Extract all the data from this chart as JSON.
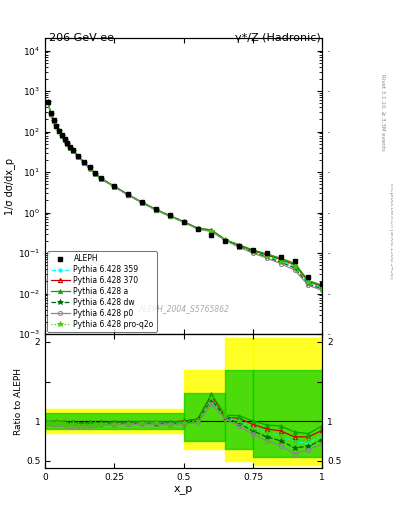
{
  "title_left": "206 GeV ee",
  "title_right": "γ*/Z (Hadronic)",
  "ylabel_main": "1/σ dσ/dx_p",
  "ylabel_ratio": "Ratio to ALEPH",
  "xlabel": "x_p",
  "watermark": "ALEPH_2004_S5765862",
  "right_label": "Rivet 3.1.10, ≥ 3.3M events",
  "right_label2": "mcplots.cern.ch [arXiv:1306.3436]",
  "xp": [
    0.01,
    0.02,
    0.03,
    0.04,
    0.05,
    0.06,
    0.07,
    0.08,
    0.09,
    0.1,
    0.12,
    0.14,
    0.16,
    0.18,
    0.2,
    0.25,
    0.3,
    0.35,
    0.4,
    0.45,
    0.5,
    0.55,
    0.6,
    0.65,
    0.7,
    0.75,
    0.8,
    0.85,
    0.9,
    0.95,
    1.0
  ],
  "aleph_y": [
    550,
    280,
    190,
    140,
    105,
    82,
    65,
    52,
    42,
    35,
    25,
    18,
    13,
    9.5,
    7.2,
    4.5,
    2.8,
    1.8,
    1.2,
    0.85,
    0.6,
    0.4,
    0.28,
    0.2,
    0.15,
    0.12,
    0.1,
    0.08,
    0.065,
    0.025,
    0.017
  ],
  "py359_y": [
    540,
    275,
    185,
    138,
    103,
    80,
    63,
    50,
    40,
    34,
    24,
    17,
    12.5,
    9.2,
    7.0,
    4.4,
    2.75,
    1.78,
    1.18,
    0.83,
    0.59,
    0.4,
    0.36,
    0.21,
    0.15,
    0.11,
    0.085,
    0.065,
    0.048,
    0.018,
    0.014
  ],
  "py370_y": [
    542,
    277,
    186,
    139,
    104,
    81,
    64,
    51,
    41,
    34.5,
    24.5,
    17.5,
    12.8,
    9.3,
    7.1,
    4.45,
    2.76,
    1.79,
    1.19,
    0.84,
    0.6,
    0.41,
    0.37,
    0.21,
    0.155,
    0.115,
    0.09,
    0.07,
    0.052,
    0.02,
    0.015
  ],
  "pya_y": [
    545,
    278,
    188,
    140,
    104,
    81,
    64,
    51,
    41,
    34.5,
    24.5,
    17.5,
    12.8,
    9.3,
    7.05,
    4.45,
    2.76,
    1.79,
    1.19,
    0.84,
    0.595,
    0.41,
    0.375,
    0.215,
    0.16,
    0.12,
    0.095,
    0.075,
    0.056,
    0.021,
    0.016
  ],
  "pydw_y": [
    538,
    273,
    184,
    137,
    102,
    79.5,
    62.5,
    49.5,
    40,
    33.5,
    23.8,
    17.0,
    12.4,
    9.1,
    6.9,
    4.35,
    2.7,
    1.75,
    1.16,
    0.82,
    0.585,
    0.4,
    0.355,
    0.21,
    0.145,
    0.105,
    0.08,
    0.06,
    0.043,
    0.017,
    0.013
  ],
  "pyp0_y": [
    535,
    271,
    182,
    136,
    101,
    79,
    62,
    49,
    39.5,
    33,
    23.5,
    16.8,
    12.2,
    9.0,
    6.8,
    4.3,
    2.68,
    1.73,
    1.15,
    0.81,
    0.58,
    0.39,
    0.34,
    0.205,
    0.14,
    0.1,
    0.075,
    0.055,
    0.038,
    0.016,
    0.012
  ],
  "pyq2o_y": [
    537,
    273,
    183,
    137,
    102,
    79.5,
    62.5,
    49.5,
    40,
    33.5,
    23.8,
    17.0,
    12.4,
    9.1,
    6.9,
    4.35,
    2.71,
    1.76,
    1.165,
    0.82,
    0.585,
    0.4,
    0.36,
    0.215,
    0.15,
    0.11,
    0.085,
    0.065,
    0.048,
    0.019,
    0.014
  ],
  "ratio_xp": [
    0.01,
    0.02,
    0.03,
    0.04,
    0.05,
    0.06,
    0.07,
    0.08,
    0.09,
    0.1,
    0.12,
    0.14,
    0.16,
    0.18,
    0.2,
    0.25,
    0.3,
    0.35,
    0.4,
    0.45,
    0.5,
    0.55,
    0.6,
    0.65,
    0.7,
    0.75,
    0.8,
    0.85,
    0.9,
    0.95,
    1.0
  ],
  "ratio_py359": [
    0.982,
    0.982,
    0.974,
    0.986,
    0.981,
    0.976,
    0.969,
    0.962,
    0.952,
    0.971,
    0.96,
    0.944,
    0.962,
    0.968,
    0.972,
    0.978,
    0.982,
    0.989,
    0.983,
    0.976,
    0.983,
    1.0,
    1.286,
    1.05,
    1.0,
    0.917,
    0.85,
    0.813,
    0.738,
    0.72,
    0.824
  ],
  "ratio_py370": [
    0.985,
    0.989,
    0.979,
    0.993,
    0.99,
    0.988,
    0.985,
    0.981,
    0.976,
    0.986,
    0.98,
    0.972,
    0.985,
    0.979,
    0.986,
    0.989,
    0.986,
    0.994,
    0.992,
    0.988,
    1.0,
    1.025,
    1.321,
    1.05,
    1.033,
    0.958,
    0.9,
    0.875,
    0.8,
    0.8,
    0.882
  ],
  "ratio_pya": [
    0.991,
    0.993,
    0.99,
    1.0,
    0.99,
    0.988,
    0.985,
    0.981,
    0.976,
    0.986,
    0.98,
    0.972,
    0.985,
    0.979,
    0.979,
    0.989,
    0.986,
    0.994,
    0.992,
    0.988,
    0.992,
    1.025,
    1.339,
    1.075,
    1.067,
    1.0,
    0.95,
    0.938,
    0.862,
    0.84,
    0.941
  ],
  "ratio_pydw": [
    0.978,
    0.975,
    0.968,
    0.979,
    0.971,
    0.97,
    0.962,
    0.952,
    0.952,
    0.957,
    0.952,
    0.944,
    0.954,
    0.958,
    0.958,
    0.967,
    0.964,
    0.972,
    0.967,
    0.965,
    0.975,
    1.0,
    1.268,
    1.05,
    0.967,
    0.875,
    0.8,
    0.75,
    0.662,
    0.68,
    0.765
  ],
  "ratio_pyp0": [
    0.973,
    0.968,
    0.958,
    0.971,
    0.962,
    0.963,
    0.954,
    0.942,
    0.94,
    0.943,
    0.94,
    0.933,
    0.938,
    0.947,
    0.944,
    0.956,
    0.957,
    0.961,
    0.958,
    0.953,
    0.967,
    0.975,
    1.214,
    1.025,
    0.933,
    0.833,
    0.75,
    0.688,
    0.585,
    0.64,
    0.706
  ],
  "ratio_pyq2o": [
    0.976,
    0.975,
    0.963,
    0.979,
    0.971,
    0.97,
    0.962,
    0.952,
    0.952,
    0.957,
    0.952,
    0.944,
    0.954,
    0.958,
    0.958,
    0.967,
    0.968,
    0.978,
    0.971,
    0.965,
    0.975,
    1.0,
    1.286,
    1.075,
    1.0,
    0.917,
    0.85,
    0.813,
    0.738,
    0.76,
    0.824
  ]
}
